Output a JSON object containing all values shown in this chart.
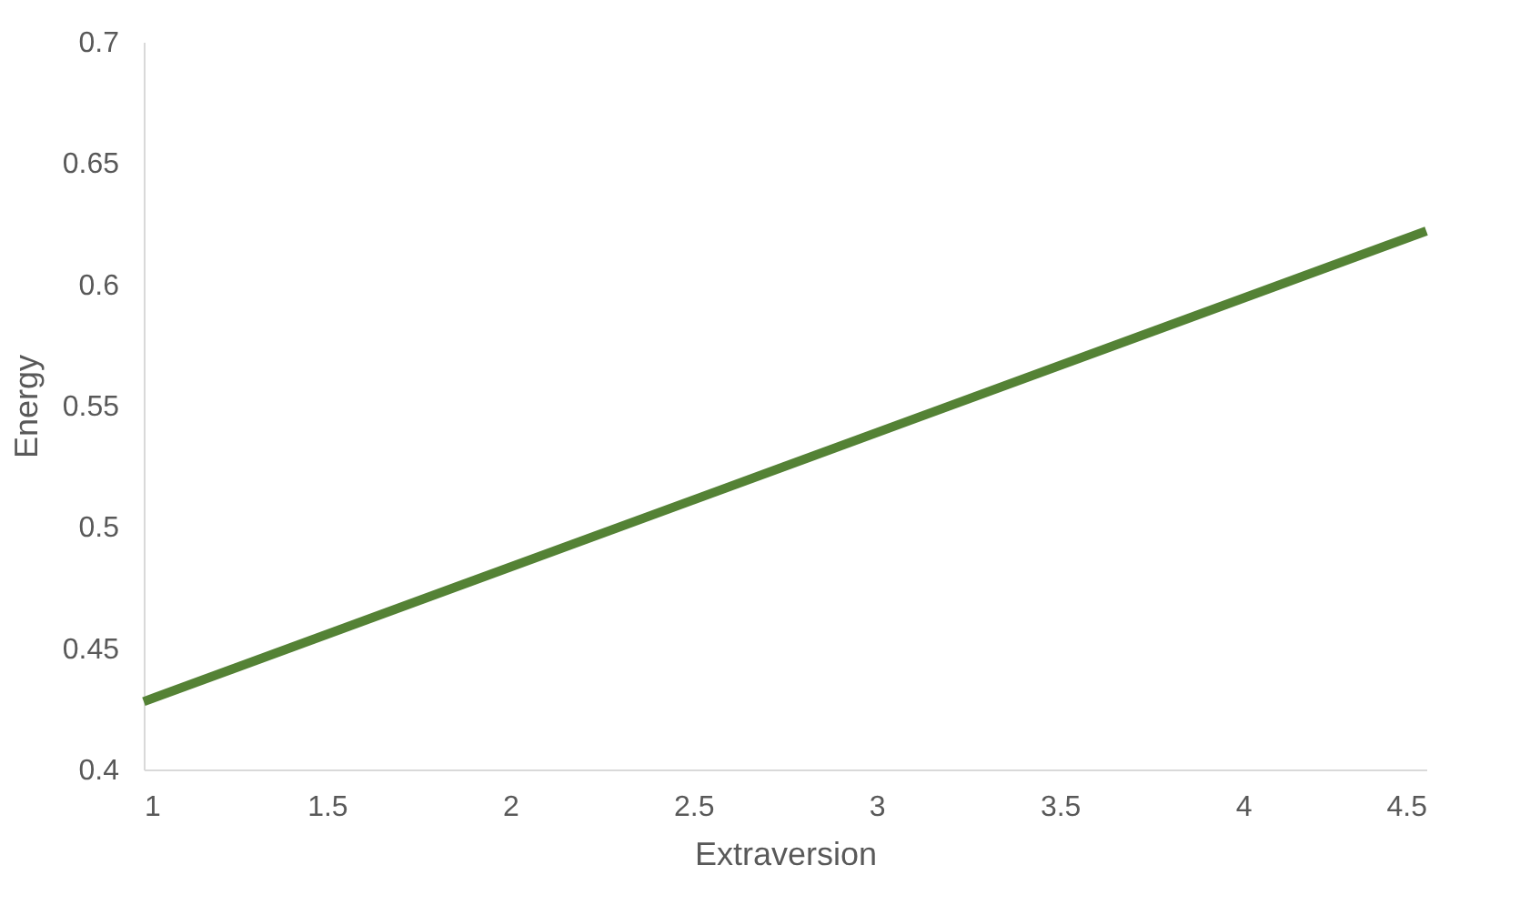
{
  "chart_data": {
    "type": "line",
    "xlabel": "Extraversion",
    "ylabel": "Energy",
    "x": [
      1,
      4.5
    ],
    "series": [
      {
        "color": "#548235",
        "values": [
          0.428,
          0.622
        ]
      }
    ],
    "xlim": [
      1,
      4.5
    ],
    "xticks": [
      1,
      1.5,
      2,
      2.5,
      3,
      3.5,
      4,
      4.5
    ],
    "ylim": [
      0.4,
      0.7
    ],
    "yticks": [
      0.4,
      0.45,
      0.5,
      0.55,
      0.6,
      0.65,
      0.7
    ],
    "grid": false,
    "legend": false,
    "marker": "none",
    "line_style": "solid"
  }
}
